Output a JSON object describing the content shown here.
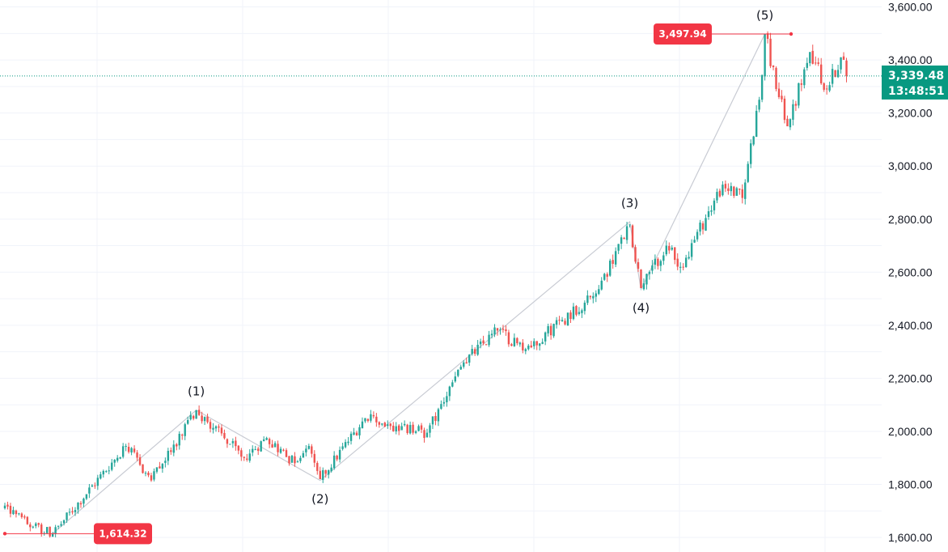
{
  "chart_data": {
    "type": "candlestick",
    "y_axis": {
      "position": "right",
      "range": [
        1560,
        3640
      ],
      "ticks": [
        {
          "value": 1600,
          "label": "1,600.00"
        },
        {
          "value": 1800,
          "label": "1,800.00"
        },
        {
          "value": 2000,
          "label": "2,000.00"
        },
        {
          "value": 2200,
          "label": "2,200.00"
        },
        {
          "value": 2400,
          "label": "2,400.00"
        },
        {
          "value": 2600,
          "label": "2,600.00"
        },
        {
          "value": 2800,
          "label": "2,800.00"
        },
        {
          "value": 3000,
          "label": "3,000.00"
        },
        {
          "value": 3200,
          "label": "3,200.00"
        },
        {
          "value": 3400,
          "label": "3,400.00"
        },
        {
          "value": 3600,
          "label": "3,600.00"
        }
      ]
    },
    "grid": true,
    "series": [
      {
        "candle_count": 300,
        "path_points": [
          {
            "i": 0,
            "price": 1720
          },
          {
            "i": 8,
            "price": 1650
          },
          {
            "i": 17,
            "price": 1614.32
          },
          {
            "i": 43,
            "price": 1945
          },
          {
            "i": 52,
            "price": 1815
          },
          {
            "i": 68,
            "price": 2080
          },
          {
            "i": 85,
            "price": 1900
          },
          {
            "i": 93,
            "price": 1975
          },
          {
            "i": 103,
            "price": 1880
          },
          {
            "i": 108,
            "price": 1945
          },
          {
            "i": 112,
            "price": 1820
          },
          {
            "i": 128,
            "price": 2050
          },
          {
            "i": 137,
            "price": 2020
          },
          {
            "i": 150,
            "price": 1995
          },
          {
            "i": 163,
            "price": 2260
          },
          {
            "i": 175,
            "price": 2380
          },
          {
            "i": 185,
            "price": 2310
          },
          {
            "i": 210,
            "price": 2520
          },
          {
            "i": 222,
            "price": 2780
          },
          {
            "i": 226,
            "price": 2540
          },
          {
            "i": 235,
            "price": 2700
          },
          {
            "i": 240,
            "price": 2620
          },
          {
            "i": 255,
            "price": 2930
          },
          {
            "i": 262,
            "price": 2880
          },
          {
            "i": 268,
            "price": 3250
          },
          {
            "i": 270,
            "price": 3497.94
          },
          {
            "i": 275,
            "price": 3260
          },
          {
            "i": 278,
            "price": 3150
          },
          {
            "i": 286,
            "price": 3430
          },
          {
            "i": 292,
            "price": 3290
          },
          {
            "i": 297,
            "price": 3410
          },
          {
            "i": 299,
            "price": 3339.48
          }
        ],
        "up_color": "#26a69a",
        "down_color": "#ef5350"
      }
    ],
    "elliott_wave": {
      "line_color": "#c8cbd3",
      "points": [
        {
          "label": "",
          "i": 17,
          "price": 1614.32
        },
        {
          "label": "(1)",
          "i": 68,
          "price": 2080
        },
        {
          "label": "(2)",
          "i": 112,
          "price": 1815
        },
        {
          "label": "(3)",
          "i": 222,
          "price": 2790
        },
        {
          "label": "(4)",
          "i": 226,
          "price": 2535
        },
        {
          "label": "(5)",
          "i": 270,
          "price": 3497.94
        }
      ]
    },
    "price_flags": [
      {
        "value": 1614.32,
        "label": "1,614.32",
        "color": "#f23645"
      },
      {
        "value": 3497.94,
        "label": "3,497.94",
        "color": "#f23645"
      }
    ],
    "current_price": {
      "value": 3339.48,
      "label": "3,339.48",
      "countdown": "13:48:51",
      "color": "#089981"
    }
  }
}
